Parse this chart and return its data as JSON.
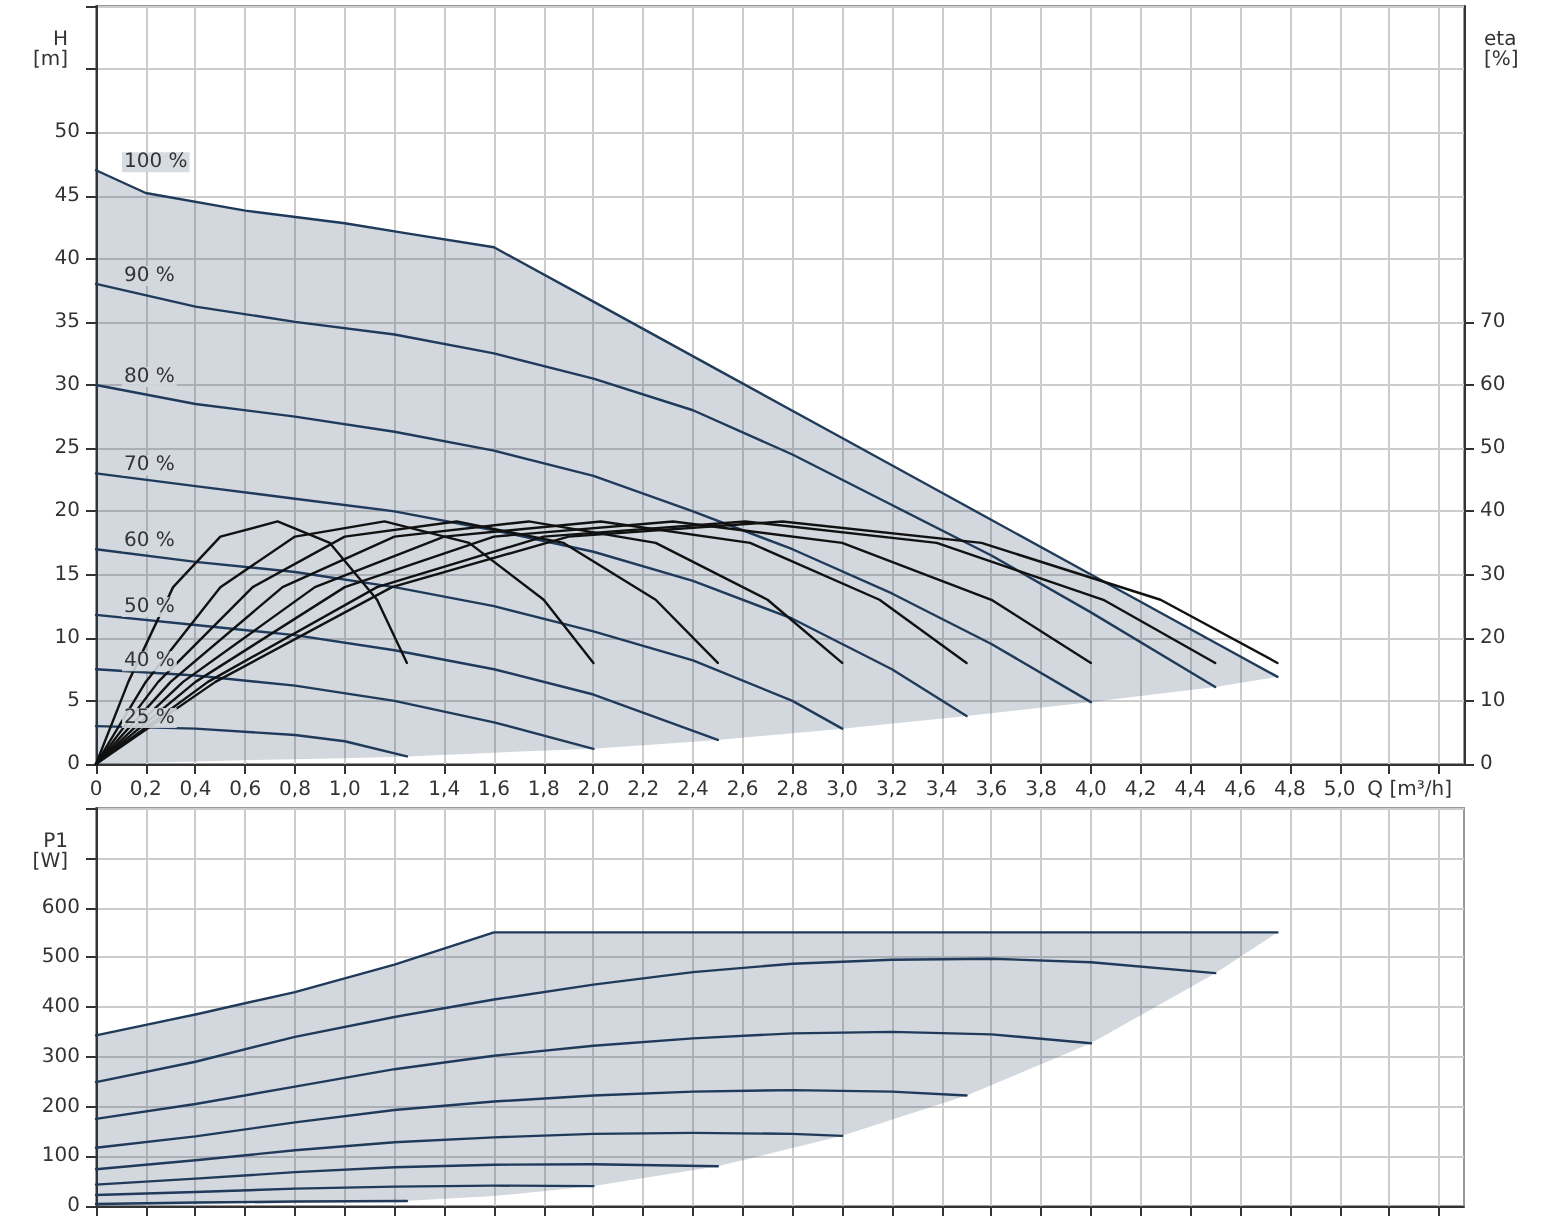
{
  "chart_data": [
    {
      "type": "line",
      "xlabel": "Q [m³/h]",
      "ylabel": "H [m]",
      "y2label": "eta [%]",
      "xlim": [
        0,
        5.5
      ],
      "xticks": [
        0,
        {
          "value": 0.2,
          "label": "0,2"
        },
        {
          "value": 0.4,
          "label": "0,4"
        },
        {
          "value": 0.6,
          "label": "0,6"
        },
        {
          "value": 0.8,
          "label": "0,8"
        },
        {
          "value": 1.0,
          "label": "1,0"
        },
        {
          "value": 1.2,
          "label": "1,2"
        },
        {
          "value": 1.4,
          "label": "1,4"
        },
        {
          "value": 1.6,
          "label": "1,6"
        },
        {
          "value": 1.8,
          "label": "1,8"
        },
        {
          "value": 2.0,
          "label": "2,0"
        },
        {
          "value": 2.2,
          "label": "2,2"
        },
        {
          "value": 2.4,
          "label": "2,4"
        },
        {
          "value": 2.6,
          "label": "2,6"
        },
        {
          "value": 2.8,
          "label": "2,8"
        },
        {
          "value": 3.0,
          "label": "3,0"
        },
        {
          "value": 3.2,
          "label": "3,2"
        },
        {
          "value": 3.4,
          "label": "3,4"
        },
        {
          "value": 3.6,
          "label": "3,6"
        },
        {
          "value": 3.8,
          "label": "3,8"
        },
        {
          "value": 4.0,
          "label": "4,0"
        },
        {
          "value": 4.2,
          "label": "4,2"
        },
        {
          "value": 4.4,
          "label": "4,4"
        },
        {
          "value": 4.6,
          "label": "4,6"
        },
        {
          "value": 4.8,
          "label": "4,8"
        },
        {
          "value": 5.0,
          "label": "5,0"
        },
        {
          "value": 5.2,
          "label": null
        },
        {
          "value": 5.4,
          "label": null
        }
      ],
      "ylim": [
        0,
        60
      ],
      "yticks": [
        0,
        5,
        10,
        15,
        20,
        25,
        30,
        35,
        40,
        45,
        50,
        {
          "value": 55,
          "label": null
        },
        {
          "value": 60,
          "label": null
        }
      ],
      "y2lim": [
        0,
        120
      ],
      "y2ticks": [
        0,
        10,
        20,
        30,
        40,
        50,
        60,
        70
      ],
      "grid": true,
      "legend": false,
      "marker": "none",
      "line_style": "solid",
      "tick_labels": "xy",
      "series": [
        {
          "name": "100 %",
          "color": "#1f3a5a",
          "x": [
            0,
            0.2,
            0.6,
            1.0,
            1.25,
            1.6,
            2.0,
            2.5,
            3.0,
            3.5,
            4.0,
            4.5,
            4.75
          ],
          "values": [
            47,
            45.2,
            43.8,
            42.8,
            42.0,
            40.9,
            36.6,
            31.2,
            25.8,
            20.4,
            15.0,
            9.6,
            6.9
          ],
          "upper": [
            47,
            45.2,
            43.8,
            42.8,
            42.0,
            40.9,
            36.6,
            31.2,
            25.8,
            20.4,
            15.0,
            9.6,
            6.9
          ],
          "lower": [
            0,
            0.1,
            0.3,
            0.45,
            0.6,
            0.9,
            1.2,
            1.9,
            2.8,
            3.8,
            4.9,
            6.1,
            6.9
          ]
        },
        {
          "name": "90 %",
          "color": "#1f3a5a",
          "x": [
            0,
            0.4,
            0.8,
            1.2,
            1.6,
            2.0,
            2.4,
            2.8,
            3.2,
            3.6,
            4.0,
            4.5
          ],
          "values": [
            38,
            36.2,
            35,
            34,
            32.5,
            30.5,
            28,
            24.5,
            20.5,
            16.5,
            12,
            6.1
          ]
        },
        {
          "name": "80 %",
          "color": "#1f3a5a",
          "x": [
            0,
            0.4,
            0.8,
            1.2,
            1.6,
            2.0,
            2.4,
            2.8,
            3.2,
            3.6,
            4.0
          ],
          "values": [
            30,
            28.5,
            27.5,
            26.3,
            24.8,
            22.8,
            20,
            17,
            13.5,
            9.5,
            4.9
          ]
        },
        {
          "name": "70 %",
          "color": "#1f3a5a",
          "x": [
            0,
            0.4,
            0.8,
            1.2,
            1.6,
            2.0,
            2.4,
            2.8,
            3.2,
            3.5
          ],
          "values": [
            23,
            22,
            21,
            20,
            18.5,
            16.8,
            14.5,
            11.5,
            7.5,
            3.8
          ]
        },
        {
          "name": "60 %",
          "color": "#1f3a5a",
          "x": [
            0,
            0.4,
            0.8,
            1.2,
            1.6,
            2.0,
            2.4,
            2.8,
            3.0
          ],
          "values": [
            17,
            16,
            15.2,
            14,
            12.5,
            10.5,
            8.2,
            5,
            2.8
          ]
        },
        {
          "name": "50 %",
          "color": "#1f3a5a",
          "x": [
            0,
            0.4,
            0.8,
            1.2,
            1.6,
            2.0,
            2.5
          ],
          "values": [
            11.8,
            11,
            10.2,
            9,
            7.5,
            5.5,
            1.9
          ]
        },
        {
          "name": "40 %",
          "color": "#1f3a5a",
          "x": [
            0,
            0.4,
            0.8,
            1.2,
            1.6,
            2.0
          ],
          "values": [
            7.5,
            7,
            6.2,
            5,
            3.3,
            1.2
          ]
        },
        {
          "name": "25 %",
          "color": "#1f3a5a",
          "x": [
            0,
            0.4,
            0.8,
            1.0,
            1.25
          ],
          "values": [
            3,
            2.8,
            2.3,
            1.8,
            0.6
          ]
        },
        {
          "axis": "y2",
          "color": "#111111",
          "x": [
            0,
            0.13,
            0.31,
            0.5,
            0.73,
            0.94,
            1.13,
            1.25
          ],
          "values": [
            0,
            13,
            28,
            36,
            38.4,
            35,
            26,
            16
          ]
        },
        {
          "axis": "y2",
          "color": "#111111",
          "x": [
            0,
            0.2,
            0.5,
            0.8,
            1.16,
            1.5,
            1.8,
            2.0
          ],
          "values": [
            0,
            13,
            28,
            36,
            38.4,
            35,
            26,
            16
          ]
        },
        {
          "axis": "y2",
          "color": "#111111",
          "x": [
            0,
            0.25,
            0.63,
            1.0,
            1.45,
            1.88,
            2.25,
            2.5
          ],
          "values": [
            0,
            13,
            28,
            36,
            38.4,
            35,
            26,
            16
          ]
        },
        {
          "axis": "y2",
          "color": "#111111",
          "x": [
            0,
            0.3,
            0.75,
            1.2,
            1.74,
            2.25,
            2.7,
            3.0
          ],
          "values": [
            0,
            13,
            28,
            36,
            38.4,
            35,
            26,
            16
          ]
        },
        {
          "axis": "y2",
          "color": "#111111",
          "x": [
            0,
            0.35,
            0.88,
            1.4,
            2.03,
            2.63,
            3.15,
            3.5
          ],
          "values": [
            0,
            13,
            28,
            36,
            38.4,
            35,
            26,
            16
          ]
        },
        {
          "axis": "y2",
          "color": "#111111",
          "x": [
            0,
            0.4,
            1.0,
            1.6,
            2.32,
            3.0,
            3.6,
            4.0
          ],
          "values": [
            0,
            13,
            28,
            36,
            38.4,
            35,
            26,
            16
          ]
        },
        {
          "axis": "y2",
          "color": "#111111",
          "x": [
            0,
            0.45,
            1.13,
            1.8,
            2.61,
            3.38,
            4.05,
            4.5
          ],
          "values": [
            0,
            13,
            28,
            36,
            38.4,
            35,
            26,
            16
          ]
        },
        {
          "axis": "y2",
          "color": "#111111",
          "x": [
            0,
            0.48,
            1.19,
            1.9,
            2.76,
            3.56,
            4.28,
            4.75
          ],
          "values": [
            0,
            13,
            28,
            36,
            38.4,
            35,
            26,
            16
          ]
        }
      ]
    },
    {
      "type": "line",
      "ylabel": "P1 [W]",
      "xlim": [
        0,
        5.5
      ],
      "xticks": [
        {
          "value": 0,
          "label": null
        },
        {
          "value": 0.2,
          "label": null
        },
        {
          "value": 0.4,
          "label": null
        },
        {
          "value": 0.6,
          "label": null
        },
        {
          "value": 0.8,
          "label": null
        },
        {
          "value": 1.0,
          "label": null
        },
        {
          "value": 1.2,
          "label": null
        },
        {
          "value": 1.4,
          "label": null
        },
        {
          "value": 1.6,
          "label": null
        },
        {
          "value": 1.8,
          "label": null
        },
        {
          "value": 2.0,
          "label": null
        },
        {
          "value": 2.2,
          "label": null
        },
        {
          "value": 2.4,
          "label": null
        },
        {
          "value": 2.6,
          "label": null
        },
        {
          "value": 2.8,
          "label": null
        },
        {
          "value": 3.0,
          "label": null
        },
        {
          "value": 3.2,
          "label": null
        },
        {
          "value": 3.4,
          "label": null
        },
        {
          "value": 3.6,
          "label": null
        },
        {
          "value": 3.8,
          "label": null
        },
        {
          "value": 4.0,
          "label": null
        },
        {
          "value": 4.2,
          "label": null
        },
        {
          "value": 4.4,
          "label": null
        },
        {
          "value": 4.6,
          "label": null
        },
        {
          "value": 4.8,
          "label": null
        },
        {
          "value": 5.0,
          "label": null
        },
        {
          "value": 5.2,
          "label": null
        },
        {
          "value": 5.4,
          "label": null
        }
      ],
      "ylim": [
        0,
        800
      ],
      "yticks": [
        0,
        100,
        200,
        300,
        400,
        500,
        600,
        {
          "value": 700,
          "label": null
        },
        {
          "value": 800,
          "label": null
        }
      ],
      "grid": true,
      "legend": false,
      "marker": "none",
      "line_style": "solid",
      "tick_labels": "y",
      "series": [
        {
          "color": "#1f3a5a",
          "x": [
            0,
            0.4,
            0.8,
            1.2,
            1.6,
            2.0,
            2.5,
            3.0,
            3.5,
            4.0,
            4.5,
            4.75
          ],
          "values": [
            343,
            385,
            430,
            485,
            550,
            550,
            550,
            550,
            550,
            550,
            550,
            550
          ],
          "upper": [
            343,
            385,
            430,
            485,
            550,
            550,
            550,
            550,
            550,
            550,
            550,
            550
          ],
          "lower": [
            0,
            3,
            6,
            9,
            20,
            40,
            80,
            141,
            222,
            327,
            468,
            550
          ]
        },
        {
          "color": "#1f3a5a",
          "x": [
            0,
            0.4,
            0.8,
            1.2,
            1.6,
            2.0,
            2.4,
            2.8,
            3.2,
            3.6,
            4.0,
            4.5
          ],
          "values": [
            249,
            290,
            340,
            380,
            415,
            445,
            470,
            487,
            495,
            497,
            490,
            468
          ]
        },
        {
          "color": "#1f3a5a",
          "x": [
            0,
            0.4,
            0.8,
            1.2,
            1.6,
            2.0,
            2.4,
            2.8,
            3.2,
            3.6,
            4.0
          ],
          "values": [
            175,
            205,
            240,
            275,
            302,
            322,
            337,
            347,
            350,
            345,
            327
          ]
        },
        {
          "color": "#1f3a5a",
          "x": [
            0,
            0.4,
            0.8,
            1.2,
            1.6,
            2.0,
            2.4,
            2.8,
            3.2,
            3.5
          ],
          "values": [
            117,
            140,
            168,
            193,
            210,
            222,
            230,
            233,
            230,
            222
          ]
        },
        {
          "color": "#1f3a5a",
          "x": [
            0,
            0.4,
            0.8,
            1.2,
            1.6,
            2.0,
            2.4,
            2.8,
            3.0
          ],
          "values": [
            74,
            92,
            112,
            128,
            138,
            145,
            147,
            145,
            141
          ]
        },
        {
          "color": "#1f3a5a",
          "x": [
            0,
            0.4,
            0.8,
            1.2,
            1.6,
            2.0,
            2.5
          ],
          "values": [
            43,
            55,
            68,
            78,
            83,
            84,
            80
          ]
        },
        {
          "color": "#1f3a5a",
          "x": [
            0,
            0.4,
            0.8,
            1.2,
            1.6,
            2.0
          ],
          "values": [
            22,
            28,
            35,
            39,
            41,
            40
          ]
        },
        {
          "color": "#1f3a5a",
          "x": [
            0,
            0.4,
            0.8,
            1.25
          ],
          "values": [
            4,
            7,
            9,
            10
          ]
        }
      ]
    }
  ]
}
